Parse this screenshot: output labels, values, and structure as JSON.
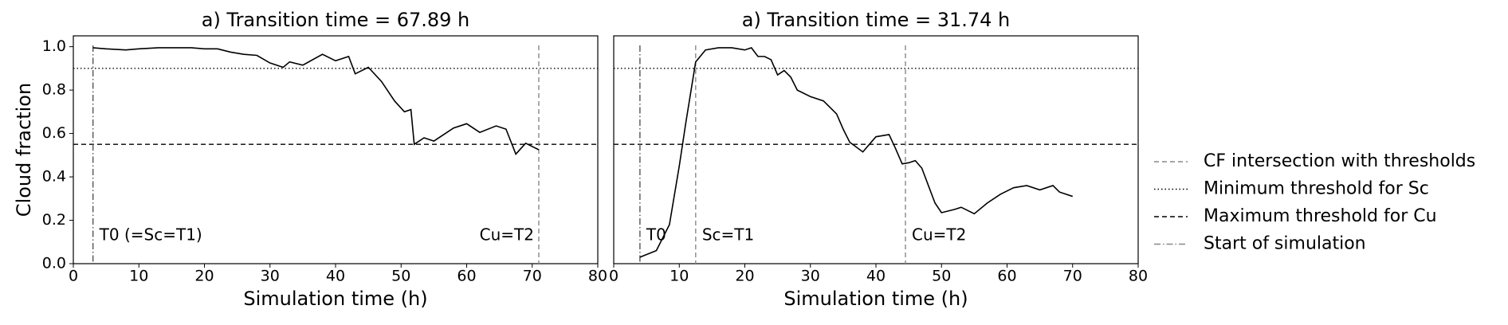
{
  "chart_data": [
    {
      "type": "line",
      "title": "a) Transition time = 67.89 h",
      "xlabel": "Simulation time (h)",
      "ylabel": "Cloud fraction",
      "xlim": [
        0,
        80
      ],
      "xticks": [
        0,
        10,
        20,
        30,
        40,
        50,
        60,
        70,
        80
      ],
      "ylim": [
        0,
        1.05
      ],
      "yticks": [
        {
          "value": 0,
          "label": "0.0"
        },
        {
          "value": 0.2,
          "label": "0.2"
        },
        {
          "value": 0.4,
          "label": "0.4"
        },
        {
          "value": 0.6,
          "label": "0.6"
        },
        {
          "value": 0.8,
          "label": "0.8"
        },
        {
          "value": 1,
          "label": "1.0"
        }
      ],
      "x": [
        3,
        5,
        8,
        10,
        13,
        16,
        18,
        20,
        22,
        24,
        26,
        28,
        30,
        32,
        33,
        35,
        38,
        40,
        42,
        43,
        45,
        47,
        49,
        50.5,
        51.5,
        52,
        53.5,
        55,
        58,
        60,
        62,
        64.5,
        66,
        67.5,
        69,
        71
      ],
      "values": [
        0.995,
        0.99,
        0.985,
        0.99,
        0.995,
        0.995,
        0.995,
        0.99,
        0.99,
        0.975,
        0.965,
        0.96,
        0.925,
        0.905,
        0.93,
        0.915,
        0.965,
        0.935,
        0.955,
        0.875,
        0.905,
        0.84,
        0.75,
        0.7,
        0.71,
        0.55,
        0.58,
        0.565,
        0.625,
        0.645,
        0.605,
        0.635,
        0.62,
        0.505,
        0.555,
        0.525
      ],
      "color": "#000000",
      "hlines": [
        {
          "value": 0.9,
          "style": "dotted",
          "color": "#000000"
        },
        {
          "value": 0.55,
          "style": "dashed",
          "color": "#000000"
        }
      ],
      "vlines": [
        {
          "value": 3,
          "style": "dashdot",
          "color": "#555555",
          "label": "T0 (=Sc=T1)"
        },
        {
          "value": 71,
          "style": "dashed",
          "color": "#888888",
          "label": "Cu=T2"
        }
      ]
    },
    {
      "type": "line",
      "title": "a) Transition time = 31.74 h",
      "xlabel": "Simulation time (h)",
      "xlim": [
        0,
        80
      ],
      "xticks": [
        0,
        10,
        20,
        30,
        40,
        50,
        60,
        70,
        80
      ],
      "ylim": [
        0,
        1.05
      ],
      "x": [
        4,
        6.5,
        8.5,
        10,
        11,
        12.5,
        14,
        16,
        18,
        20,
        21,
        22,
        23,
        24,
        25,
        26,
        27,
        28,
        30,
        32,
        34,
        35,
        36,
        38,
        39,
        40,
        41,
        42,
        43,
        44,
        45,
        46,
        47,
        48,
        49,
        50,
        52,
        53,
        55,
        57,
        59,
        61,
        62,
        63,
        65,
        67,
        68,
        70
      ],
      "values": [
        0.03,
        0.06,
        0.18,
        0.45,
        0.65,
        0.93,
        0.985,
        0.995,
        0.995,
        0.985,
        0.995,
        0.955,
        0.955,
        0.94,
        0.87,
        0.89,
        0.86,
        0.8,
        0.77,
        0.75,
        0.69,
        0.62,
        0.56,
        0.515,
        0.55,
        0.585,
        0.59,
        0.595,
        0.53,
        0.46,
        0.465,
        0.475,
        0.44,
        0.36,
        0.28,
        0.235,
        0.25,
        0.26,
        0.23,
        0.28,
        0.32,
        0.35,
        0.355,
        0.36,
        0.34,
        0.36,
        0.33,
        0.31
      ],
      "color": "#000000",
      "hlines": [
        {
          "value": 0.9,
          "style": "dotted",
          "color": "#000000"
        },
        {
          "value": 0.55,
          "style": "dashed",
          "color": "#000000"
        }
      ],
      "vlines": [
        {
          "value": 4,
          "style": "dashdot",
          "color": "#555555",
          "label": "T0"
        },
        {
          "value": 12.5,
          "style": "dashed",
          "color": "#888888",
          "label": "Sc=T1"
        },
        {
          "value": 44.5,
          "style": "dashed",
          "color": "#888888",
          "label": "Cu=T2"
        }
      ]
    }
  ],
  "legend": {
    "entries": [
      {
        "label": "CF intersection with thresholds",
        "style": "dashed",
        "color": "#888888"
      },
      {
        "label": "Minimum threshold for Sc",
        "style": "dotted",
        "color": "#000000"
      },
      {
        "label": "Maximum threshold for Cu",
        "style": "dashed",
        "color": "#000000"
      },
      {
        "label": "Start of simulation",
        "style": "dashdot",
        "color": "#888888"
      }
    ]
  }
}
